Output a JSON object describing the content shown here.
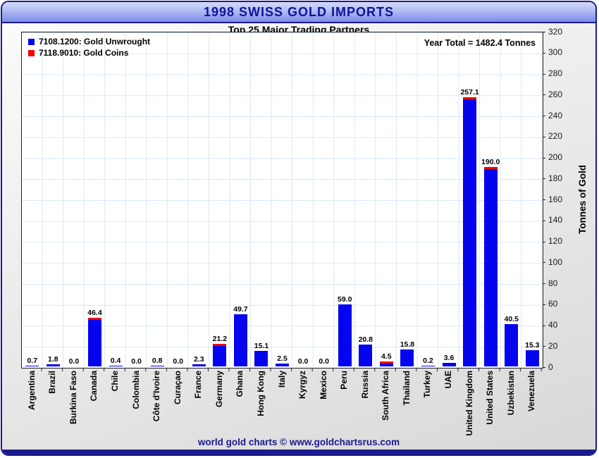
{
  "header": {
    "title": "1998 SWISS GOLD IMPORTS"
  },
  "subtitle": "Top 25 Major Trading Partners",
  "annotation": "Year Total = 1482.4 Tonnes",
  "legend": [
    {
      "label": "7108.1200: Gold Unwrought",
      "color": "#0404ee"
    },
    {
      "label": "7118.9010: Gold Coins",
      "color": "#f00404"
    }
  ],
  "footer": {
    "text": "world gold charts © www.goldchartsrus.com"
  },
  "y_axis": {
    "label": "Tonnes of Gold"
  },
  "colors": {
    "bar_blue": "#0404ee",
    "bar_red": "#f00404",
    "navy": "#1b1b8e",
    "grid": "#d9e8f7"
  },
  "chart_data": {
    "type": "bar",
    "stacked": true,
    "title": "1998 SWISS GOLD IMPORTS",
    "subtitle": "Top 25 Major Trading Partners",
    "ylabel": "Tonnes of Gold",
    "ylim": [
      0,
      320
    ],
    "ytick_step": 20,
    "grid": true,
    "legend_position": "top-left",
    "annotation": "Year Total = 1482.4 Tonnes",
    "series_names": [
      "7108.1200: Gold Unwrought",
      "7118.9010: Gold Coins"
    ],
    "categories": [
      "Argentina",
      "Brazil",
      "Burkina Faso",
      "Canada",
      "Chile",
      "Colombia",
      "Côte d'Ivoire",
      "Curaçao",
      "France",
      "Germany",
      "Ghana",
      "Hong Kong",
      "Italy",
      "Kyrgyz",
      "Mexico",
      "Peru",
      "Russia",
      "South Africa",
      "Thailand",
      "Turkey",
      "UAE",
      "United Kingdom",
      "United States",
      "Uzbekistan",
      "Venezuela"
    ],
    "values": [
      0.7,
      1.8,
      0.0,
      46.4,
      0.4,
      0.0,
      0.8,
      0.0,
      2.3,
      21.2,
      49.7,
      15.1,
      2.5,
      0.0,
      0.0,
      59.0,
      20.8,
      4.5,
      15.8,
      0.2,
      3.6,
      257.1,
      190.0,
      40.5,
      15.3
    ],
    "gold_coins_cap": [
      false,
      false,
      false,
      true,
      false,
      false,
      false,
      false,
      false,
      true,
      false,
      false,
      false,
      false,
      false,
      false,
      false,
      true,
      false,
      false,
      false,
      true,
      true,
      false,
      false
    ]
  }
}
